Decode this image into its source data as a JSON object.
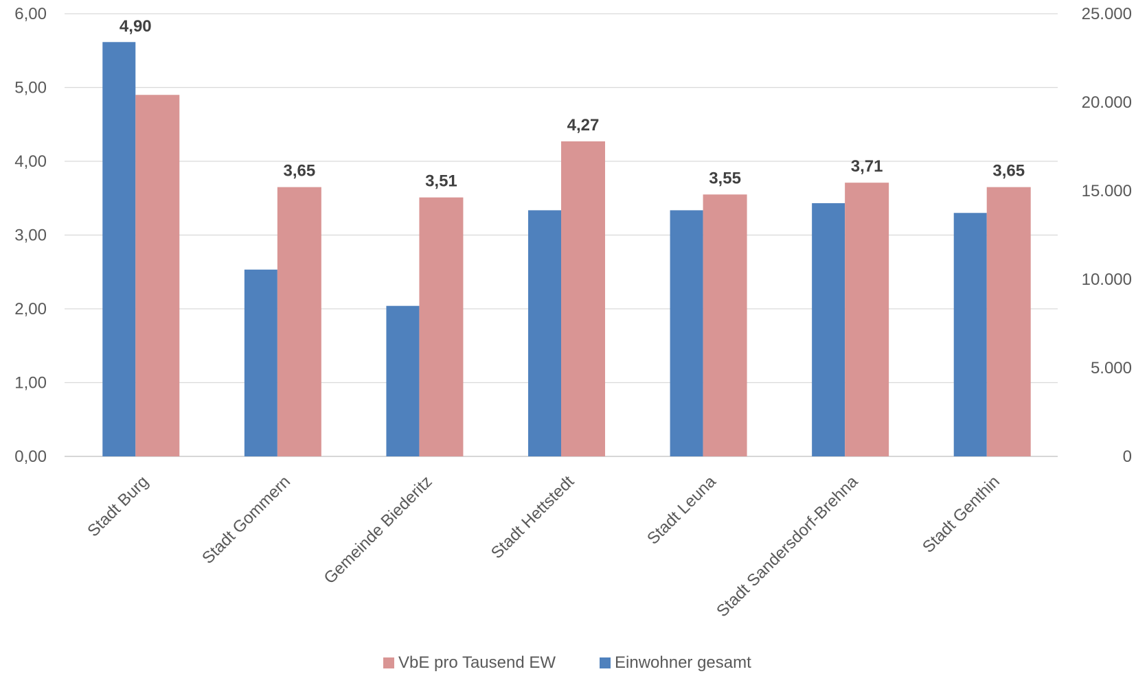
{
  "chart_data": {
    "type": "bar",
    "categories": [
      "Stadt Burg",
      "Stadt Gommern",
      "Gemeinde Biederitz",
      "Stadt Hettstedt",
      "Stadt Leuna",
      "Stadt Sandersdorf-Brehna",
      "Stadt Genthin"
    ],
    "series": [
      {
        "name": "VbE pro Tausend EW",
        "axis": "left",
        "color": "#d99594",
        "values": [
          4.9,
          3.65,
          3.51,
          4.27,
          3.55,
          3.71,
          3.65
        ],
        "data_labels": [
          "4,90",
          "3,65",
          "3,51",
          "4,27",
          "3,55",
          "3,71",
          "3,65"
        ]
      },
      {
        "name": "Einwohner gesamt",
        "axis": "right",
        "color": "#4f81bd",
        "values": [
          23400,
          10550,
          8500,
          13900,
          13900,
          14300,
          13750
        ]
      }
    ],
    "left_axis": {
      "ylim": [
        0,
        6
      ],
      "ticks": [
        0,
        1,
        2,
        3,
        4,
        5,
        6
      ],
      "tick_labels": [
        "0,00",
        "1,00",
        "2,00",
        "3,00",
        "4,00",
        "5,00",
        "6,00"
      ]
    },
    "right_axis": {
      "ylim": [
        0,
        25000
      ],
      "ticks": [
        0,
        5000,
        10000,
        15000,
        20000,
        25000
      ],
      "tick_labels": [
        "0",
        "5.000",
        "10.000",
        "15.000",
        "20.000",
        "25.000"
      ]
    },
    "grid": true,
    "legend": "bottom-center",
    "gridline_color": "#d9d9d9"
  }
}
